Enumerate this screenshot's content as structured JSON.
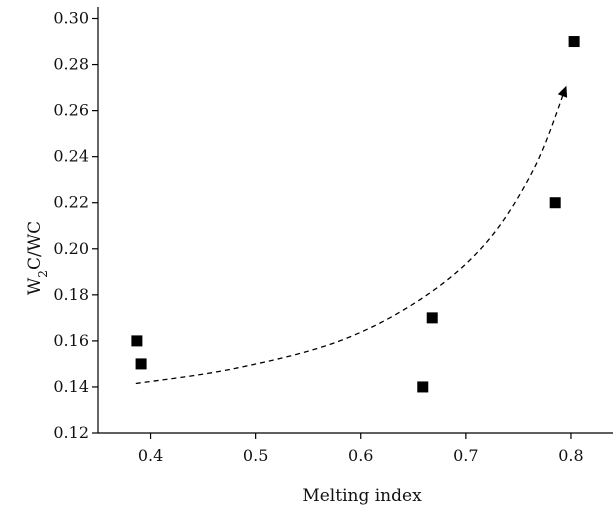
{
  "chart_data": {
    "type": "scatter",
    "title": "",
    "xlabel": "Melting index",
    "ylabel_main": "W",
    "ylabel_sub": "2",
    "ylabel_rest": "C/WC",
    "xlim": [
      0.35,
      0.84
    ],
    "ylim": [
      0.12,
      0.305
    ],
    "x_ticks": [
      0.4,
      0.5,
      0.6,
      0.7,
      0.8
    ],
    "x_tick_labels": [
      "0.4",
      "0.5",
      "0.6",
      "0.7",
      "0.8"
    ],
    "y_ticks": [
      0.12,
      0.14,
      0.16,
      0.18,
      0.2,
      0.22,
      0.24,
      0.26,
      0.28,
      0.3
    ],
    "y_tick_labels": [
      "0.12",
      "0.14",
      "0.16",
      "0.18",
      "0.20",
      "0.22",
      "0.24",
      "0.26",
      "0.28",
      "0.30"
    ],
    "grid": false,
    "legend": "none",
    "series": [
      {
        "marker": "square",
        "color": "#000000",
        "points": [
          {
            "x": 0.387,
            "y": 0.16
          },
          {
            "x": 0.391,
            "y": 0.15
          },
          {
            "x": 0.659,
            "y": 0.14
          },
          {
            "x": 0.668,
            "y": 0.17
          },
          {
            "x": 0.785,
            "y": 0.22
          },
          {
            "x": 0.803,
            "y": 0.29
          }
        ]
      }
    ],
    "trend_arrow": {
      "style": "dashed",
      "color": "#000000",
      "points": [
        {
          "x": 0.386,
          "y": 0.1415
        },
        {
          "x": 0.48,
          "y": 0.148
        },
        {
          "x": 0.58,
          "y": 0.16
        },
        {
          "x": 0.66,
          "y": 0.179
        },
        {
          "x": 0.72,
          "y": 0.203
        },
        {
          "x": 0.765,
          "y": 0.235
        },
        {
          "x": 0.795,
          "y": 0.27
        }
      ]
    }
  }
}
